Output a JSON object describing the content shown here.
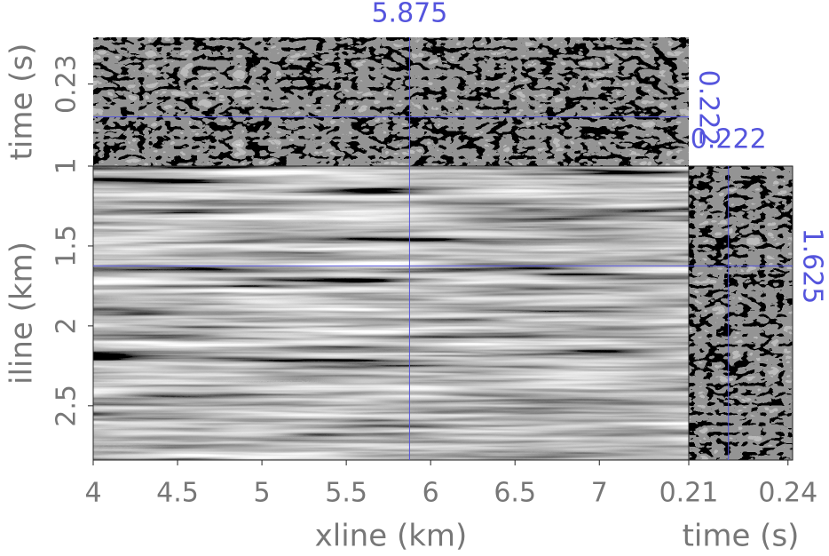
{
  "chart_data": {
    "type": "cube",
    "front": {
      "xlabel": "xline (km)",
      "ylabel": "iline (km)",
      "xlim": [
        4,
        7.53
      ],
      "ylim": [
        1,
        2.84
      ],
      "yreverse": true,
      "xticks": [
        4,
        4.5,
        5,
        5.5,
        6,
        6.5,
        7
      ],
      "yticks": [
        1,
        1.5,
        2,
        2.5
      ]
    },
    "top": {
      "ylabel": "time (s)",
      "ylim": [
        0.21,
        0.2414
      ],
      "yticks": [
        0.23
      ]
    },
    "side": {
      "xlabel": "time (s)",
      "xlim": [
        0.21,
        0.2414
      ],
      "xticks": [
        0.21,
        0.24
      ]
    },
    "slices": {
      "xline": 5.875,
      "iline": 1.625,
      "time": 0.222
    },
    "axis_color": "#777777",
    "slice_color": "#5555dd"
  }
}
